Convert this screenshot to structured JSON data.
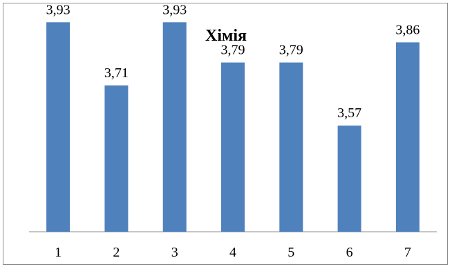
{
  "chart_data": {
    "type": "bar",
    "title": "Хімія",
    "xlabel": "",
    "ylabel": "",
    "categories": [
      "1",
      "2",
      "3",
      "4",
      "5",
      "6",
      "7"
    ],
    "values": [
      3.93,
      3.71,
      3.93,
      3.79,
      3.79,
      3.57,
      3.86
    ],
    "value_labels": [
      "3,93",
      "3,71",
      "3,93",
      "3,79",
      "3,79",
      "3,57",
      "3,86"
    ],
    "ylim": [
      3.2,
      4.0
    ],
    "grid": false,
    "legend": "none",
    "bar_color": "#4f81bd"
  }
}
